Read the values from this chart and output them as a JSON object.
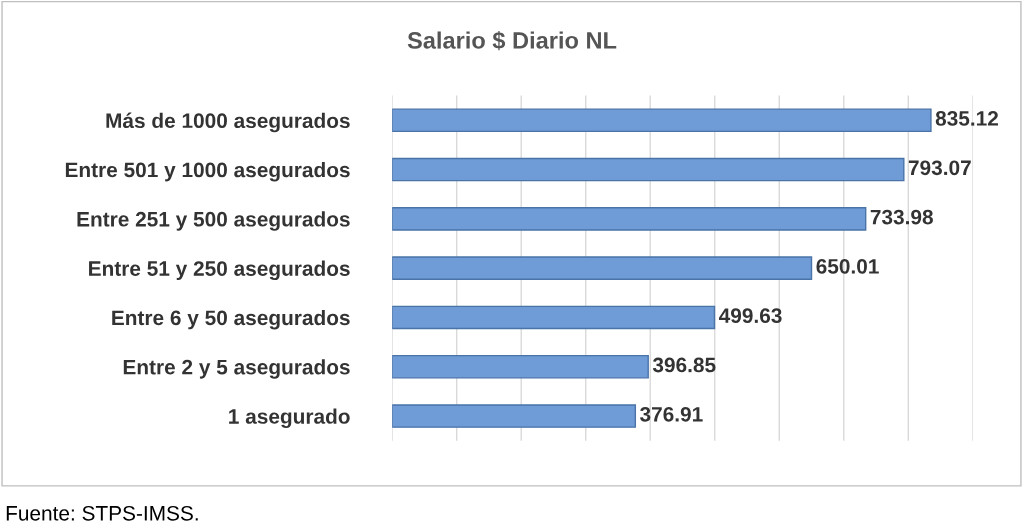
{
  "chart_data": {
    "type": "bar",
    "orientation": "horizontal",
    "title": "Salario $ Diario NL",
    "categories": [
      "Más de 1000 asegurados",
      "Entre 501 y 1000 asegurados",
      "Entre 251 y 500 asegurados",
      "Entre 51 y 250 asegurados",
      "Entre 6 y 50 asegurados",
      "Entre 2 y 5 asegurados",
      "1 asegurado"
    ],
    "values": [
      835.12,
      793.07,
      733.98,
      650.01,
      499.63,
      396.85,
      376.91
    ],
    "color": "#6f9bd6",
    "data_labels": true,
    "xlim": [
      0,
      900
    ],
    "xticks": [
      {
        "value": 0,
        "label": null
      },
      {
        "value": 100,
        "label": null
      },
      {
        "value": 200,
        "label": null
      },
      {
        "value": 300,
        "label": null
      },
      {
        "value": 400,
        "label": null
      },
      {
        "value": 500,
        "label": null
      },
      {
        "value": 600,
        "label": null
      },
      {
        "value": 700,
        "label": null
      },
      {
        "value": 800,
        "label": null
      },
      {
        "value": 900,
        "label": null
      }
    ],
    "tick_labels": "y",
    "grid": "x",
    "annotations": [
      "Fuente: STPS-IMSS."
    ]
  }
}
